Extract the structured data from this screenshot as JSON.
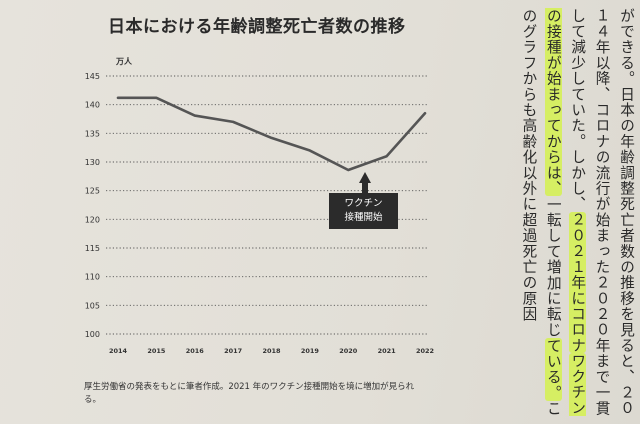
{
  "chart_data": {
    "type": "line",
    "title": "日本における年齢調整死亡者数の推移",
    "unit_label": "万人",
    "x": [
      "2014",
      "2015",
      "2016",
      "2017",
      "2018",
      "2019",
      "2020",
      "2021",
      "2022"
    ],
    "series": [
      {
        "values": [
          141.2,
          141.2,
          138.1,
          137.0,
          134.2,
          132.0,
          128.6,
          131.0,
          138.5
        ]
      }
    ],
    "ylim": [
      100,
      145
    ],
    "yticks": [
      100,
      105,
      110,
      115,
      120,
      125,
      130,
      135,
      140,
      145
    ],
    "grid": "horizontal-dotted",
    "annotation": {
      "lines": [
        "ワクチン",
        "接種開始"
      ],
      "x": "2020.8"
    },
    "colors": {
      "line": "#555555",
      "grid": "#555555",
      "callout": "#2b2b2b"
    }
  },
  "caption": "厚生労働省の発表をもとに筆者作成。2021 年のワクチン接種開始を境に増加が見られる。",
  "body_text": {
    "col1": "ができる。日本の年齢調整死亡者数の推移を見ると、",
    "col2": "２０１４年以降、コロナの流行が始まった２０２０年ま",
    "col3": "で一貫して減少していた。しかし、２０２１年にコロナ",
    "col4_hl": "ワクチンの接種が始まってからは、",
    "col4_rest": "一転して増加に転じ",
    "col5_hl": "ている。",
    "col5_rest": "このグラフからも高齢化以外に超過死亡の原因",
    "hl_col3": "２０２１年にコロナ"
  },
  "highlight_color": "#d6ee63"
}
